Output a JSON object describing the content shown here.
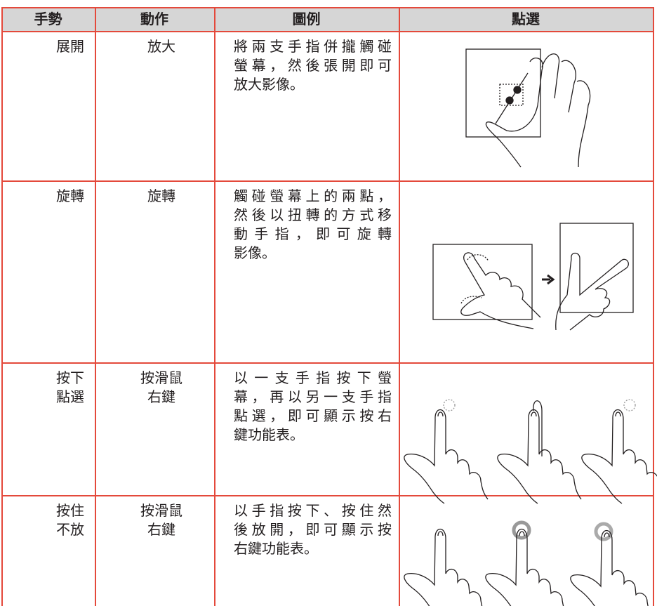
{
  "table": {
    "header": [
      "手勢",
      "動作",
      "圖例",
      "點選"
    ],
    "rows": [
      [
        [
          "展開"
        ],
        [
          "放大"
        ],
        [
          "將兩支手指併攏觸碰",
          "螢幕，然後張開即可",
          "放大影像。"
        ]
      ],
      [
        [
          "旋轉"
        ],
        [
          "旋轉"
        ],
        [
          "觸碰螢幕上的兩點，",
          "然後以扭轉的方式移",
          "動手指，即可旋轉",
          "影像。"
        ]
      ],
      [
        [
          "按下",
          "點選"
        ],
        [
          "按滑鼠",
          "右鍵"
        ],
        [
          "以一支手指按下螢",
          "幕，再以另一支手指",
          "點選，即可顯示按右",
          "鍵功能表。"
        ]
      ],
      [
        [
          "按住",
          "不放"
        ],
        [
          "按滑鼠",
          "右鍵"
        ],
        [
          "以手指按下、按住然",
          "後放開，即可顯示按",
          "右鍵功能表。"
        ]
      ]
    ]
  }
}
